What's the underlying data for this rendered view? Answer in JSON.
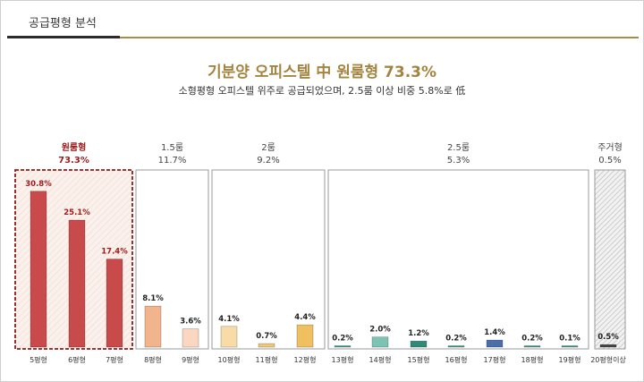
{
  "header": {
    "title": "공급평형 분석"
  },
  "title": "기분양 오피스텔 中 원룸형 73.3%",
  "subtitle": "소형평형 오피스텔 위주로 공급되었으며, 2.5룸 이상 비중 5.8%로 低",
  "chart_data": {
    "type": "bar",
    "categories": [
      "5평형",
      "6평형",
      "7평형",
      "8평형",
      "9평형",
      "10평형",
      "11평형",
      "12평형",
      "13평형",
      "14평형",
      "15평형",
      "16평형",
      "17평형",
      "18평형",
      "19평형",
      "20평형이상"
    ],
    "values": [
      30.8,
      25.1,
      17.4,
      8.1,
      3.6,
      4.1,
      0.7,
      4.4,
      0.2,
      2.0,
      1.2,
      0.2,
      1.4,
      0.2,
      0.1,
      0.5
    ],
    "value_labels": [
      "30.8%",
      "25.1%",
      "17.4%",
      "8.1%",
      "3.6%",
      "4.1%",
      "0.7%",
      "4.4%",
      "0.2%",
      "2.0%",
      "1.2%",
      "0.2%",
      "1.4%",
      "0.2%",
      "0.1%",
      "0.5%"
    ],
    "groups": [
      {
        "name": "원룸형",
        "share": "73.3%",
        "categories": [
          "5평형",
          "6평형",
          "7평형"
        ],
        "color": "#c94a4a"
      },
      {
        "name": "1.5룸",
        "share": "11.7%",
        "categories": [
          "8평형",
          "9평형"
        ],
        "color": "#f2b48c"
      },
      {
        "name": "2룸",
        "share": "9.2%",
        "categories": [
          "10평형",
          "11평형",
          "12평형"
        ],
        "color": "#f0c878"
      },
      {
        "name": "2.5룸",
        "share": "5.3%",
        "categories": [
          "13평형",
          "14평형",
          "15평형",
          "16평형",
          "17평형",
          "18평형",
          "19평형"
        ],
        "color": "#3f9a8a"
      },
      {
        "name": "주거형",
        "share": "0.5%",
        "categories": [
          "20평형이상"
        ],
        "color": "#444444"
      }
    ],
    "bar_colors": [
      "#c94a4a",
      "#c94a4a",
      "#c94a4a",
      "#f2b48c",
      "#fbd6c0",
      "#f7dca8",
      "#f0c878",
      "#f0c060",
      "#3f9a8a",
      "#7cc3b3",
      "#2f8a7a",
      "#3f9a8a",
      "#4a6fa8",
      "#3f9a8a",
      "#3f9a8a",
      "#444444"
    ],
    "ylim": [
      0,
      35
    ],
    "grid": false,
    "legend": "none"
  }
}
